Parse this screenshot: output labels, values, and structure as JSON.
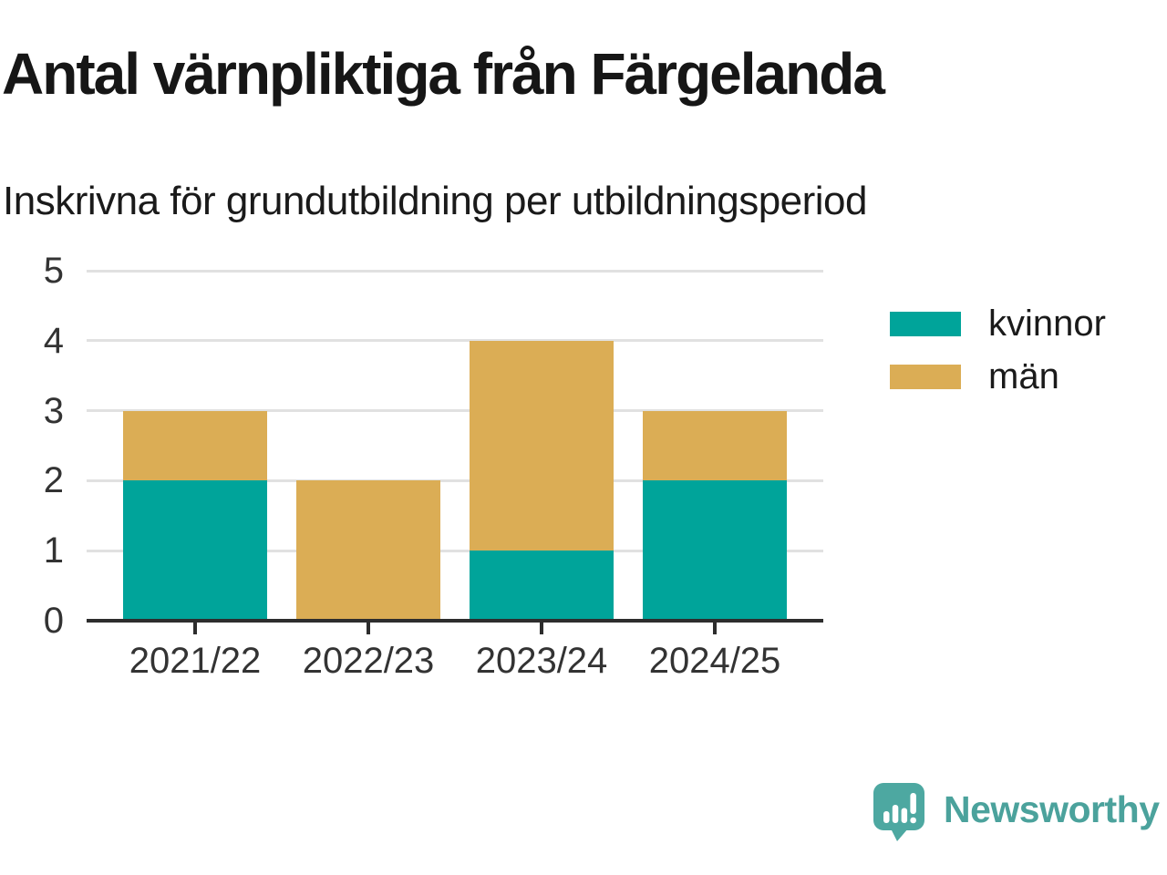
{
  "title": "Antal värnpliktiga från Färgelanda",
  "subtitle": "Inskrivna för grundutbildning per utbildningsperiod",
  "chart_data": {
    "type": "bar",
    "stacked": true,
    "categories": [
      "2021/22",
      "2022/23",
      "2023/24",
      "2024/25"
    ],
    "series": [
      {
        "name": "kvinnor",
        "color": "#00a49a",
        "values": [
          2,
          0,
          1,
          2
        ]
      },
      {
        "name": "män",
        "color": "#dbad55",
        "values": [
          1,
          2,
          3,
          1
        ]
      }
    ],
    "totals": [
      3,
      2,
      4,
      3
    ],
    "xlabel": "",
    "ylabel": "",
    "ylim": [
      0,
      5
    ],
    "yticks": [
      0,
      1,
      2,
      3,
      4,
      5
    ],
    "grid": true,
    "legend_position": "right"
  },
  "legend": {
    "items": [
      {
        "label": "kvinnor",
        "color": "#00a49a"
      },
      {
        "label": "män",
        "color": "#dbad55"
      }
    ]
  },
  "footer": {
    "brand": "Newsworthy",
    "logo_icon": "speech-bubble-bar-chart-icon"
  },
  "colors": {
    "kvinnor": "#00a49a",
    "man": "#dbad55",
    "grid": "#e1e1e1",
    "axis": "#2d2d2d",
    "tick_text": "#333333",
    "title_text": "#161616",
    "brand_text": "#4ba29c",
    "brand_icon": "#4da8a1"
  }
}
